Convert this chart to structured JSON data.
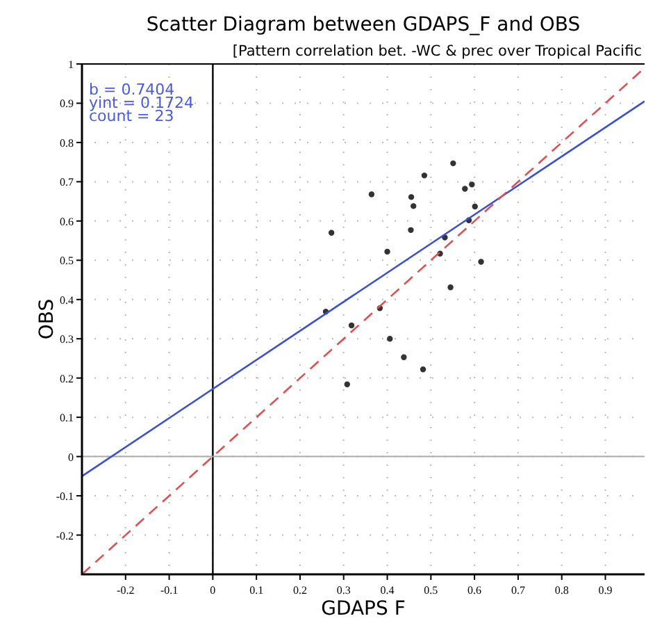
{
  "chart_data": {
    "type": "scatter",
    "title": "Scatter Diagram between GDAPS_F and OBS",
    "subtitle": "[Pattern correlation bet. -WC & prec over Tropical Pacific",
    "xlabel": "GDAPS F",
    "ylabel": "OBS",
    "xlim": [
      -0.3,
      0.99
    ],
    "ylim": [
      -0.3,
      1
    ],
    "xticks": [
      -0.2,
      -0.1,
      0,
      0.1,
      0.2,
      0.3,
      0.4,
      0.5,
      0.6,
      0.7,
      0.8,
      0.9
    ],
    "yticks": [
      -0.2,
      -0.1,
      0,
      0.1,
      0.2,
      0.3,
      0.4,
      0.5,
      0.6,
      0.7,
      0.8,
      0.9,
      1
    ],
    "grid": true,
    "annotations": [
      "b = 0.7404",
      "yint = 0.1724",
      "count = 23"
    ],
    "ref_lines": [
      {
        "axis": "x",
        "value": 0,
        "color": "#000000"
      },
      {
        "axis": "y",
        "value": 0,
        "color": "#aaaaaa"
      }
    ],
    "series": [
      {
        "marker": "circle",
        "color": "#333333",
        "x": [
          0.551,
          0.485,
          0.594,
          0.578,
          0.364,
          0.455,
          0.46,
          0.601,
          0.587,
          0.454,
          0.272,
          0.532,
          0.4,
          0.521,
          0.615,
          0.545,
          0.259,
          0.383,
          0.318,
          0.406,
          0.438,
          0.482,
          0.308
        ],
        "values": [
          0.747,
          0.716,
          0.693,
          0.682,
          0.668,
          0.661,
          0.638,
          0.637,
          0.602,
          0.577,
          0.57,
          0.558,
          0.522,
          0.517,
          0.496,
          0.431,
          0.369,
          0.378,
          0.334,
          0.3,
          0.253,
          0.222,
          0.184
        ]
      },
      {
        "type": "line",
        "color": "#3a4fd8",
        "line_style": "solid",
        "marker": "none",
        "x": [
          -0.3,
          0.99
        ],
        "values": [
          -0.05,
          0.905
        ]
      },
      {
        "type": "line",
        "color": "#e05050",
        "line_style": "dashed",
        "marker": "none",
        "x": [
          -0.3,
          0.99
        ],
        "values": [
          -0.3,
          0.99
        ]
      }
    ]
  }
}
